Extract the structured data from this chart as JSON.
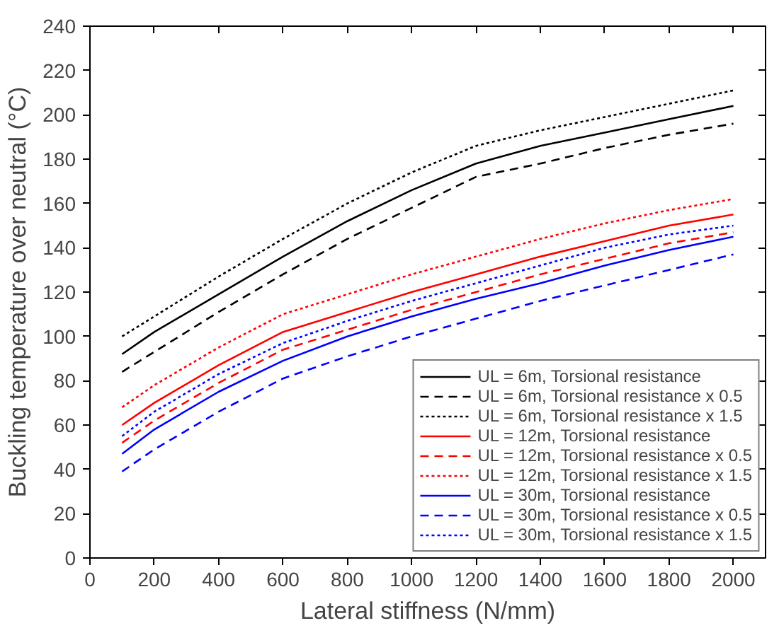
{
  "chart_data": {
    "type": "line",
    "xlabel": "Lateral stiffness (N/mm)",
    "ylabel": "Buckling temperature over neutral (°C)",
    "x": [
      100,
      200,
      400,
      600,
      800,
      1000,
      1200,
      1400,
      1600,
      1800,
      2000
    ],
    "series": [
      {
        "name": "UL = 6m, Torsional resistance",
        "color": "#000000",
        "line_style": "solid",
        "values": [
          92,
          102,
          119,
          136,
          152,
          166,
          178,
          186,
          192,
          198,
          204
        ]
      },
      {
        "name": "UL = 6m, Torsional resistance x 0.5",
        "color": "#000000",
        "line_style": "dashed",
        "values": [
          84,
          93,
          111,
          128,
          144,
          158,
          172,
          178,
          185,
          191,
          196
        ]
      },
      {
        "name": "UL = 6m, Torsional resistance x 1.5",
        "color": "#000000",
        "line_style": "dotted",
        "values": [
          100,
          109,
          127,
          144,
          160,
          174,
          186,
          193,
          199,
          205,
          211
        ]
      },
      {
        "name": "UL = 12m, Torsional resistance",
        "color": "#ff0000",
        "line_style": "solid",
        "values": [
          60,
          70,
          87,
          102,
          111,
          120,
          128,
          136,
          143,
          150,
          155
        ]
      },
      {
        "name": "UL = 12m, Torsional resistance x 0.5",
        "color": "#ff0000",
        "line_style": "dashed",
        "values": [
          52,
          62,
          79,
          94,
          103,
          112,
          120,
          128,
          135,
          142,
          147
        ]
      },
      {
        "name": "UL = 12m, Torsional resistance x 1.5",
        "color": "#ff0000",
        "line_style": "dotted",
        "values": [
          68,
          78,
          95,
          110,
          119,
          128,
          136,
          144,
          151,
          157,
          162
        ]
      },
      {
        "name": "UL = 30m, Torsional resistance",
        "color": "#0000ff",
        "line_style": "solid",
        "values": [
          47,
          58,
          75,
          89,
          100,
          109,
          117,
          124,
          132,
          139,
          145
        ]
      },
      {
        "name": "UL = 30m, Torsional resistance x 0.5",
        "color": "#0000ff",
        "line_style": "dashed",
        "values": [
          39,
          49,
          66,
          81,
          91,
          100,
          108,
          116,
          123,
          130,
          137
        ]
      },
      {
        "name": "UL = 30m, Torsional resistance x 1.5",
        "color": "#0000ff",
        "line_style": "dotted",
        "values": [
          55,
          66,
          83,
          97,
          107,
          116,
          124,
          132,
          140,
          146,
          150
        ]
      }
    ],
    "xlim": [
      0,
      2100
    ],
    "xticks": [
      0,
      200,
      400,
      600,
      800,
      1000,
      1200,
      1400,
      1600,
      1800,
      2000
    ],
    "ylim": [
      0,
      240
    ],
    "yticks": [
      0,
      20,
      40,
      60,
      80,
      100,
      120,
      140,
      160,
      180,
      200,
      220,
      240
    ],
    "legend": "bottom right",
    "grid": false,
    "marker": "none"
  }
}
